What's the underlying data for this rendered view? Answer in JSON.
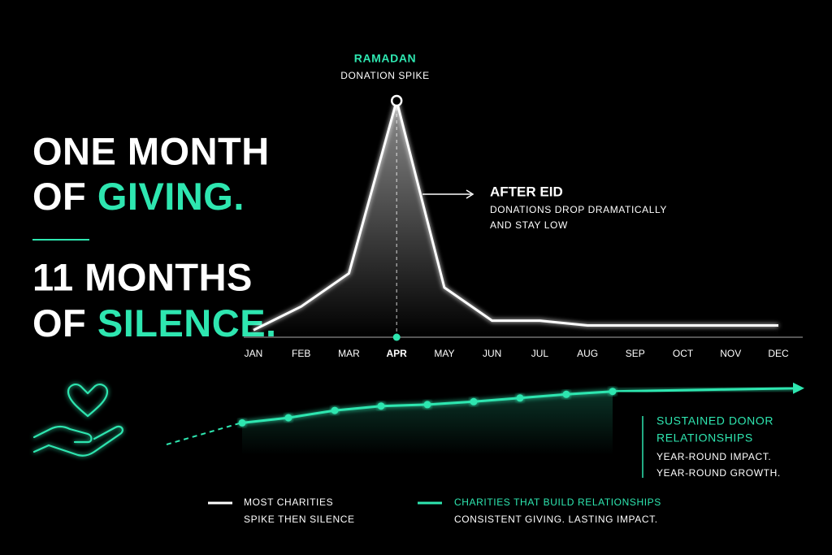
{
  "headline": {
    "line1": "ONE MONTH",
    "line2a": "OF",
    "line2b": "GIVING.",
    "line3": "11 MONTHS",
    "line4a": "OF",
    "line4b": "SILENCE."
  },
  "chart_data": [
    {
      "type": "line",
      "categories": [
        "JAN",
        "FEB",
        "MAR",
        "APR",
        "MAY",
        "JUN",
        "JUL",
        "AUG",
        "SEP",
        "OCT",
        "NOV",
        "DEC"
      ],
      "series": [
        {
          "name": "MOST CHARITIES",
          "color": "#ffffff",
          "values": [
            3,
            13,
            27,
            100,
            21,
            7,
            7,
            5,
            5,
            5,
            5,
            5
          ]
        }
      ],
      "ylim": [
        0,
        100
      ],
      "highlight_index": 3,
      "highlight_color": "#2ee6b0",
      "legend_subtitle": "SPIKE THEN SILENCE",
      "peak_title": "RAMADAN",
      "peak_subtitle": "DONATION SPIKE",
      "after_title": "AFTER EID",
      "after_text": [
        "DONATIONS DROP DRAMATICALLY",
        "AND STAY LOW"
      ]
    },
    {
      "type": "line",
      "categories": [
        null,
        null,
        null,
        null,
        null,
        null,
        null,
        null,
        null
      ],
      "series": [
        {
          "name": "CHARITIES THAT BUILD RELATIONSHIPS",
          "color": "#2ee6b0",
          "values": [
            44,
            51,
            61,
            67,
            69,
            73,
            78,
            83,
            87
          ]
        }
      ],
      "ylim": [
        0,
        100
      ],
      "legend_subtitle": "CONSISTENT GIVING. LASTING IMPACT.",
      "note_title": [
        "SUSTAINED DONOR",
        "RELATIONSHIPS"
      ],
      "note_text": [
        "YEAR-ROUND IMPACT.",
        "YEAR-ROUND GROWTH."
      ]
    }
  ]
}
